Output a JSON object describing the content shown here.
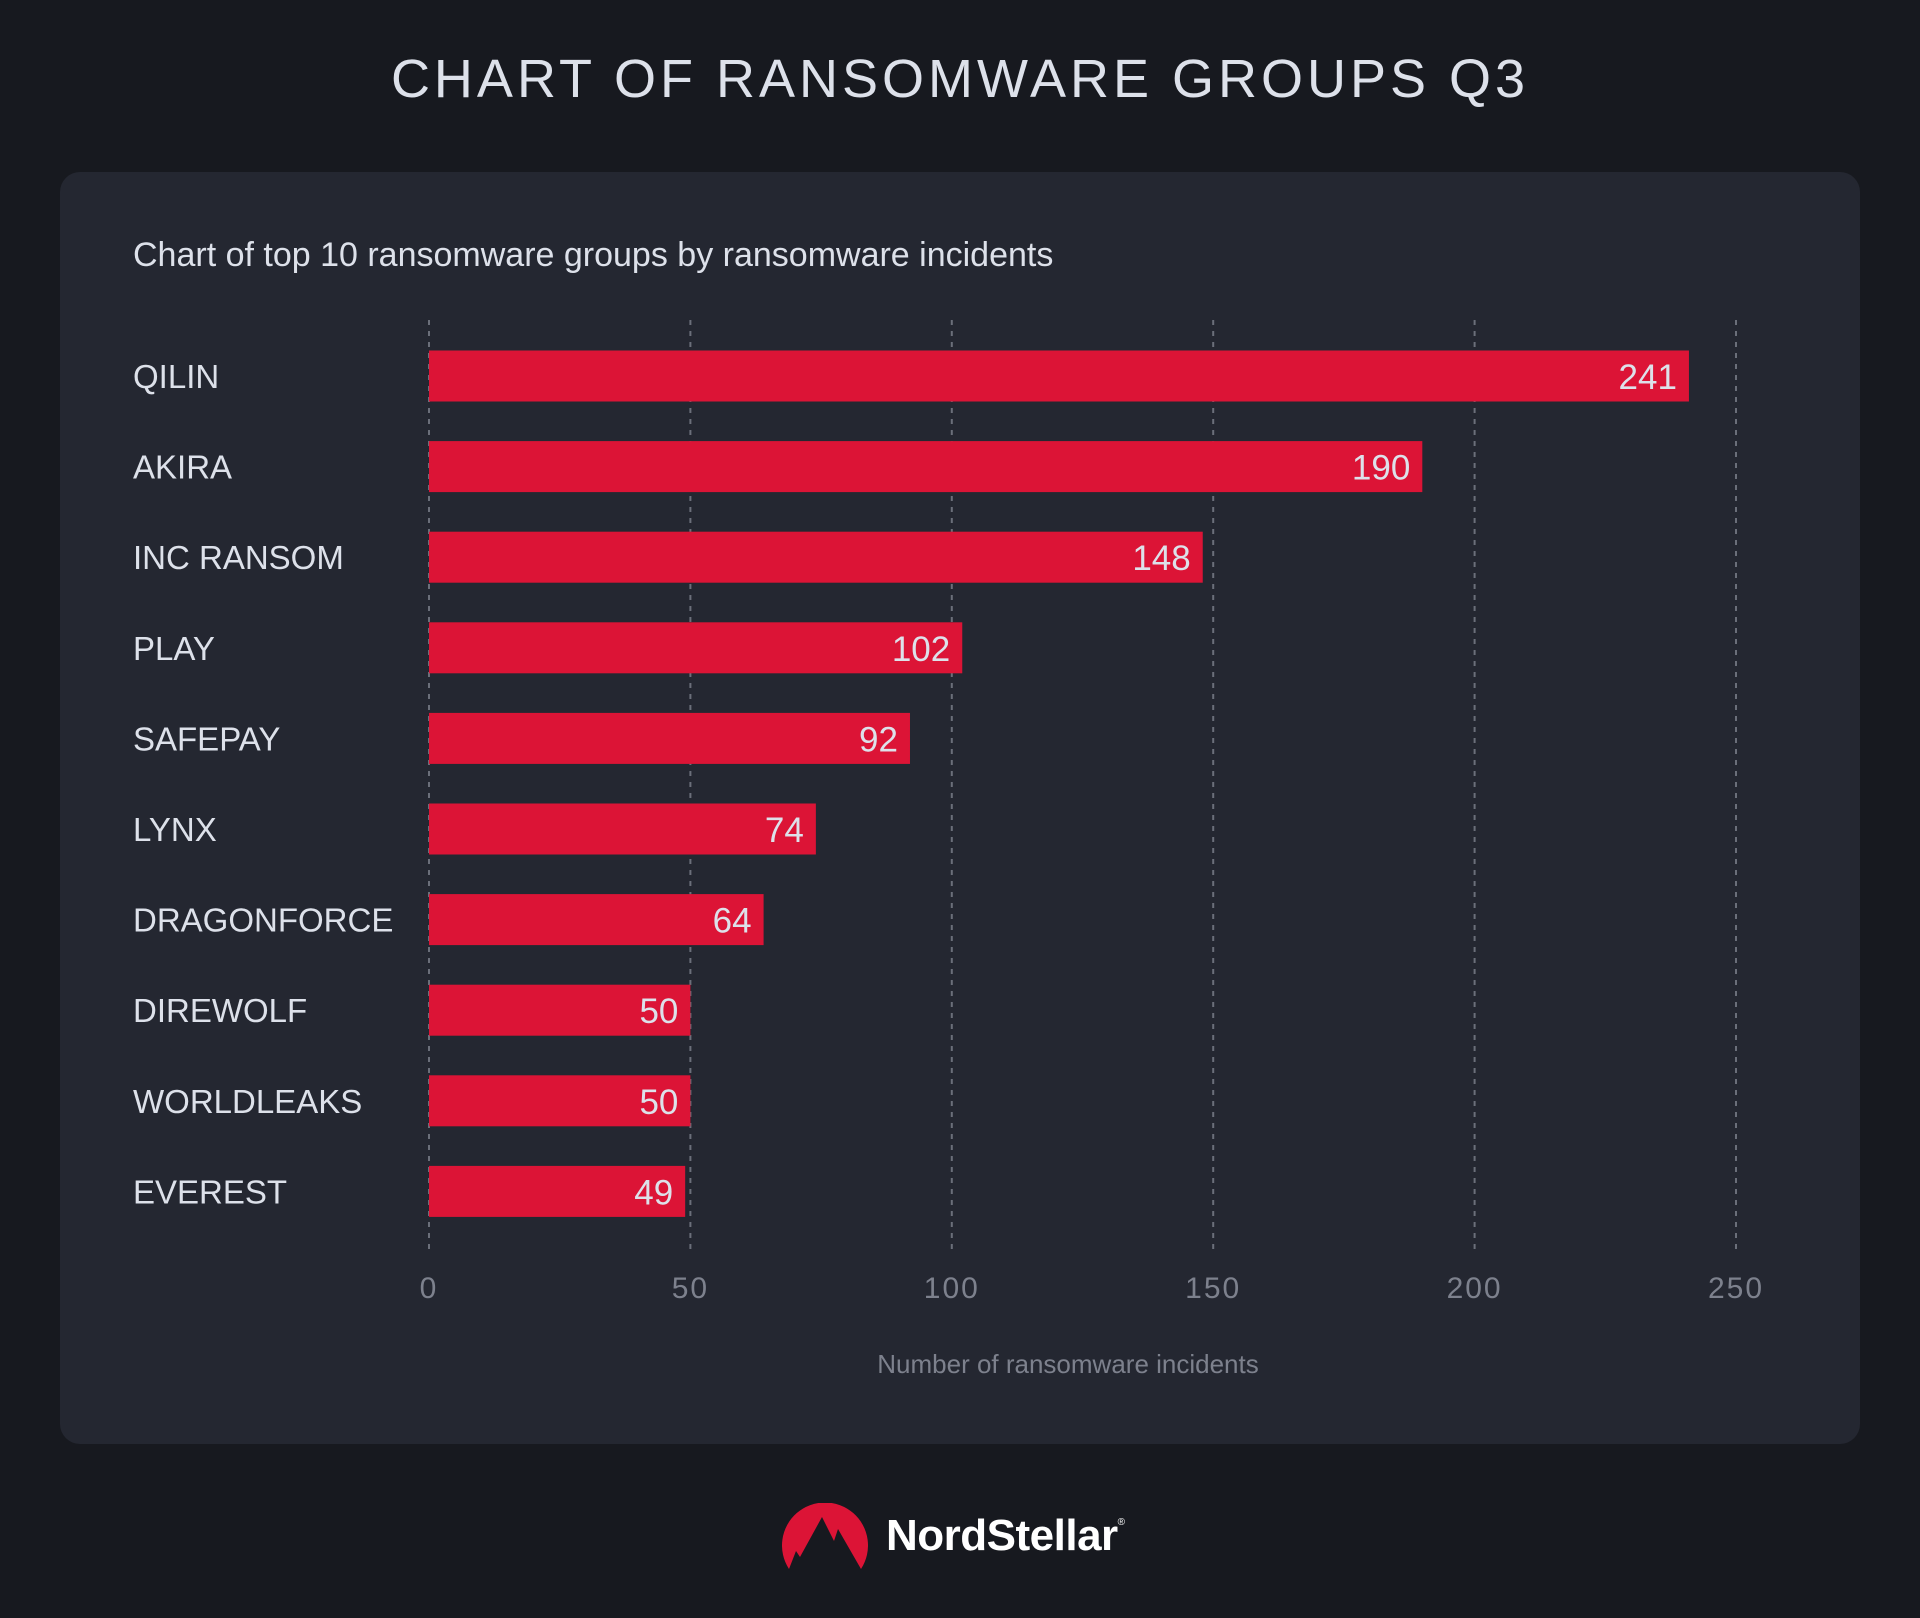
{
  "title": "CHART OF RANSOMWARE GROUPS Q3",
  "brand": {
    "name": "NordStellar",
    "registered": "®"
  },
  "colors": {
    "background": "#17191f",
    "card": "#242731",
    "bar": "#dc1436",
    "text": "#dde1ea",
    "muted": "#7d818d",
    "grid": "#6b6f7a"
  },
  "chart_data": {
    "type": "bar",
    "orientation": "horizontal",
    "title": "Chart of top 10 ransomware groups by ransomware incidents",
    "xlabel": "Number of ransomware incidents",
    "ylabel": "",
    "categories": [
      "QILIN",
      "AKIRA",
      "INC RANSOM",
      "PLAY",
      "SAFEPAY",
      "LYNX",
      "DRAGONFORCE",
      "DIREWOLF",
      "WORLDLEAKS",
      "EVEREST"
    ],
    "values": [
      241,
      190,
      148,
      102,
      92,
      74,
      64,
      50,
      50,
      49
    ],
    "xlim": [
      0,
      250
    ],
    "xticks": [
      "0",
      "50",
      "100",
      "150",
      "200",
      "250"
    ],
    "grid": "vertical dashed",
    "data_labels": true,
    "legend": "none"
  }
}
